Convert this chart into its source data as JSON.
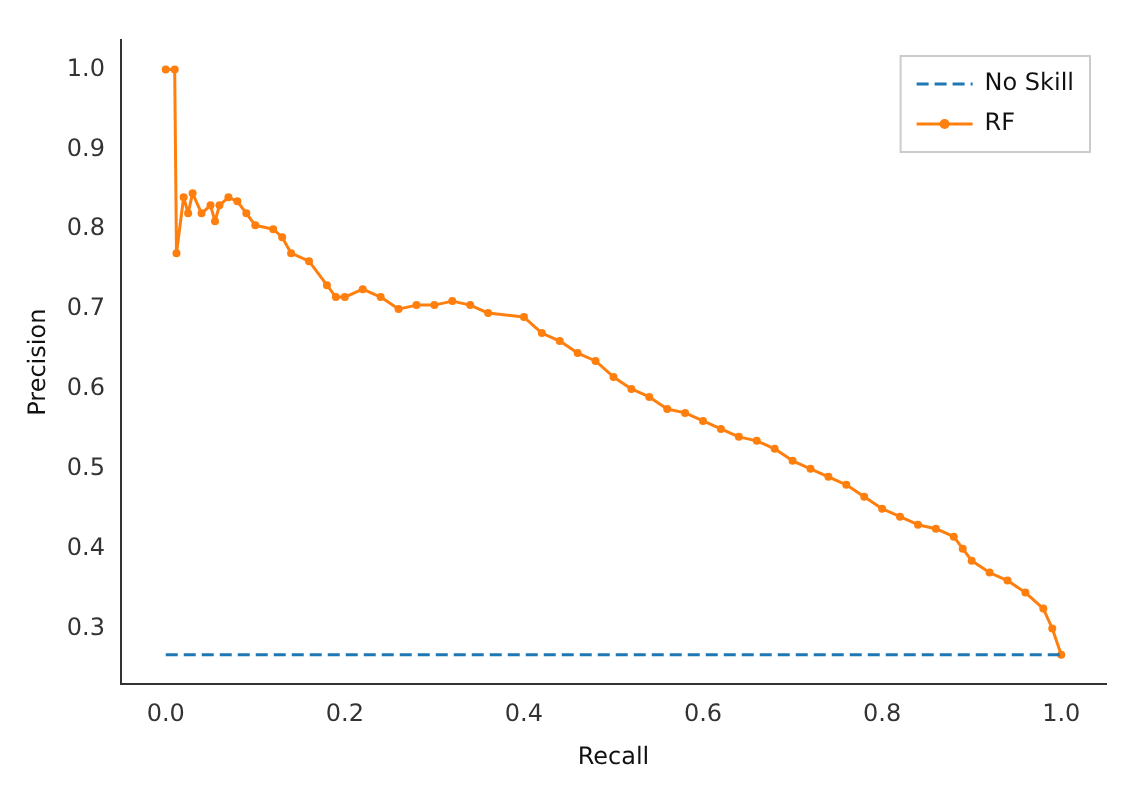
{
  "chart_data": {
    "type": "line",
    "xlabel": "Recall",
    "ylabel": "Precision",
    "legend": "top right",
    "grid": false,
    "xlim": [
      -0.05,
      1.05
    ],
    "ylim": [
      0.23,
      1.037
    ],
    "xticks": [
      {
        "value": 0,
        "label": "0.0"
      },
      {
        "value": 0.2,
        "label": "0.2"
      },
      {
        "value": 0.4,
        "label": "0.4"
      },
      {
        "value": 0.6,
        "label": "0.6"
      },
      {
        "value": 0.8,
        "label": "0.8"
      },
      {
        "value": 1,
        "label": "1.0"
      }
    ],
    "yticks": [
      {
        "value": 0.3,
        "label": "0.3"
      },
      {
        "value": 0.4,
        "label": "0.4"
      },
      {
        "value": 0.5,
        "label": "0.5"
      },
      {
        "value": 0.6,
        "label": "0.6"
      },
      {
        "value": 0.7,
        "label": "0.7"
      },
      {
        "value": 0.8,
        "label": "0.8"
      },
      {
        "value": 0.9,
        "label": "0.9"
      },
      {
        "value": 1,
        "label": "1.0"
      }
    ],
    "series": [
      {
        "name": "No Skill",
        "color": "#1f77b4",
        "line_style": "dashed",
        "marker": "none",
        "x": [
          0,
          1
        ],
        "values": [
          0.267,
          0.267
        ]
      },
      {
        "name": "RF",
        "color": "#ff7f0e",
        "line_style": "solid",
        "marker": "circle",
        "x": [
          0,
          0.01,
          0.012,
          0.02,
          0.025,
          0.03,
          0.04,
          0.05,
          0.055,
          0.06,
          0.07,
          0.08,
          0.09,
          0.1,
          0.12,
          0.13,
          0.14,
          0.16,
          0.18,
          0.19,
          0.2,
          0.22,
          0.24,
          0.26,
          0.28,
          0.3,
          0.32,
          0.34,
          0.36,
          0.4,
          0.42,
          0.44,
          0.46,
          0.48,
          0.5,
          0.52,
          0.54,
          0.56,
          0.58,
          0.6,
          0.62,
          0.64,
          0.66,
          0.68,
          0.7,
          0.72,
          0.74,
          0.76,
          0.78,
          0.8,
          0.82,
          0.84,
          0.86,
          0.88,
          0.89,
          0.9,
          0.92,
          0.94,
          0.96,
          0.98,
          0.99,
          1.0
        ],
        "values": [
          1.0,
          1.0,
          0.77,
          0.84,
          0.82,
          0.845,
          0.82,
          0.83,
          0.81,
          0.83,
          0.84,
          0.835,
          0.82,
          0.805,
          0.8,
          0.79,
          0.77,
          0.76,
          0.73,
          0.715,
          0.715,
          0.725,
          0.715,
          0.7,
          0.705,
          0.705,
          0.71,
          0.705,
          0.695,
          0.69,
          0.67,
          0.66,
          0.645,
          0.635,
          0.615,
          0.6,
          0.59,
          0.575,
          0.57,
          0.56,
          0.55,
          0.54,
          0.535,
          0.525,
          0.51,
          0.5,
          0.49,
          0.48,
          0.465,
          0.45,
          0.44,
          0.43,
          0.425,
          0.415,
          0.4,
          0.385,
          0.37,
          0.36,
          0.345,
          0.325,
          0.3,
          0.267
        ]
      }
    ]
  }
}
